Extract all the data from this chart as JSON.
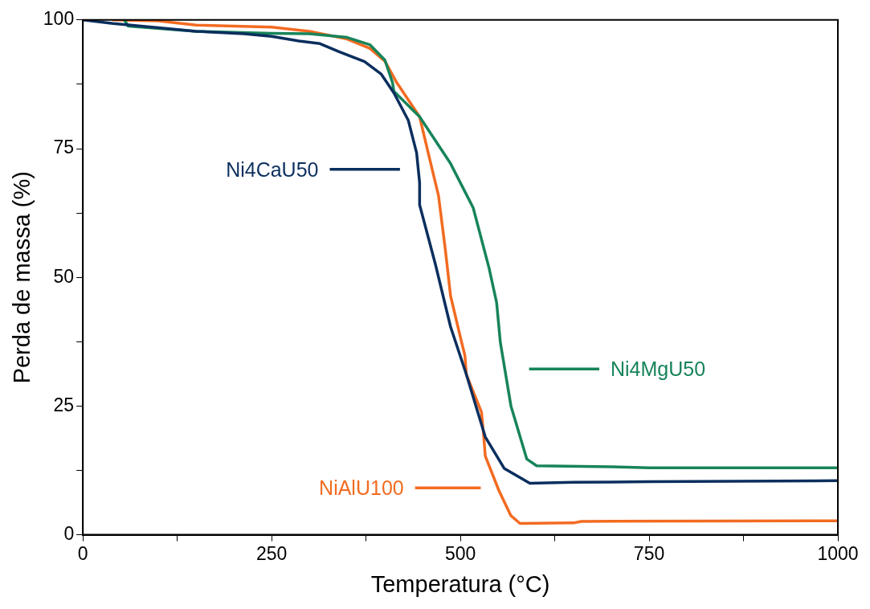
{
  "chart_data": {
    "type": "line",
    "xlabel": "Temperatura (°C)",
    "ylabel": "Perda de massa (%)",
    "xlim": [
      0,
      1000
    ],
    "ylim": [
      0,
      100
    ],
    "xticks": [
      0,
      {
        "value": 125,
        "label": null
      },
      250,
      {
        "value": 375,
        "label": null
      },
      500,
      {
        "value": 625,
        "label": null
      },
      750,
      {
        "value": 875,
        "label": null
      },
      1000
    ],
    "yticks": [
      0,
      {
        "value": 12.5,
        "label": null
      },
      25,
      {
        "value": 37.5,
        "label": null
      },
      50,
      {
        "value": 62.5,
        "label": null
      },
      75,
      {
        "value": 87.5,
        "label": null
      },
      100
    ],
    "grid": false,
    "legend": "center",
    "marker": "none",
    "line_style": "solid",
    "series": [
      {
        "name": "Ni4CaU50",
        "color": "#0b2f5e",
        "x": [
          0,
          40,
          100,
          150,
          213,
          250,
          286,
          314,
          340,
          373,
          395,
          412,
          431,
          442,
          446,
          446,
          467,
          487,
          508,
          533,
          558,
          592,
          650,
          750,
          1000
        ],
        "values": [
          100,
          99.3,
          98.5,
          97.8,
          97.3,
          96.8,
          95.9,
          95.4,
          93.8,
          91.9,
          89.5,
          85.8,
          80.5,
          74.2,
          68.4,
          64.1,
          52.5,
          40.4,
          31.1,
          19,
          12.9,
          10,
          10.2,
          10.3,
          10.5
        ]
      },
      {
        "name": "Ni4MgU50",
        "color": "#17845a",
        "x": [
          55,
          60,
          150,
          250,
          300,
          350,
          380,
          400,
          410,
          412,
          446,
          487,
          517,
          538,
          548,
          553,
          567,
          588,
          601,
          700,
          750,
          1000
        ],
        "values": [
          100,
          98.8,
          97.8,
          97.4,
          97.3,
          96.6,
          95.2,
          92.2,
          87.9,
          86.1,
          81.2,
          72.1,
          63.5,
          51.8,
          45.1,
          37.3,
          25,
          14.7,
          13.4,
          13.2,
          13,
          13
        ]
      },
      {
        "name": "NiAlU100",
        "color": "#f26b21",
        "x": [
          40,
          100,
          150,
          250,
          300,
          350,
          380,
          400,
          415,
          446,
          458,
          471,
          480,
          487,
          500,
          506,
          508,
          528,
          531,
          533,
          551,
          567,
          579,
          650,
          660,
          1000
        ],
        "values": [
          100,
          99.8,
          99,
          98.6,
          97.8,
          96.3,
          94.5,
          92,
          88,
          81.2,
          73.8,
          65.9,
          55.5,
          46.4,
          38.4,
          34.8,
          31.1,
          23.8,
          19,
          15.3,
          8.6,
          3.7,
          2.2,
          2.3,
          2.6,
          2.7
        ]
      }
    ]
  }
}
